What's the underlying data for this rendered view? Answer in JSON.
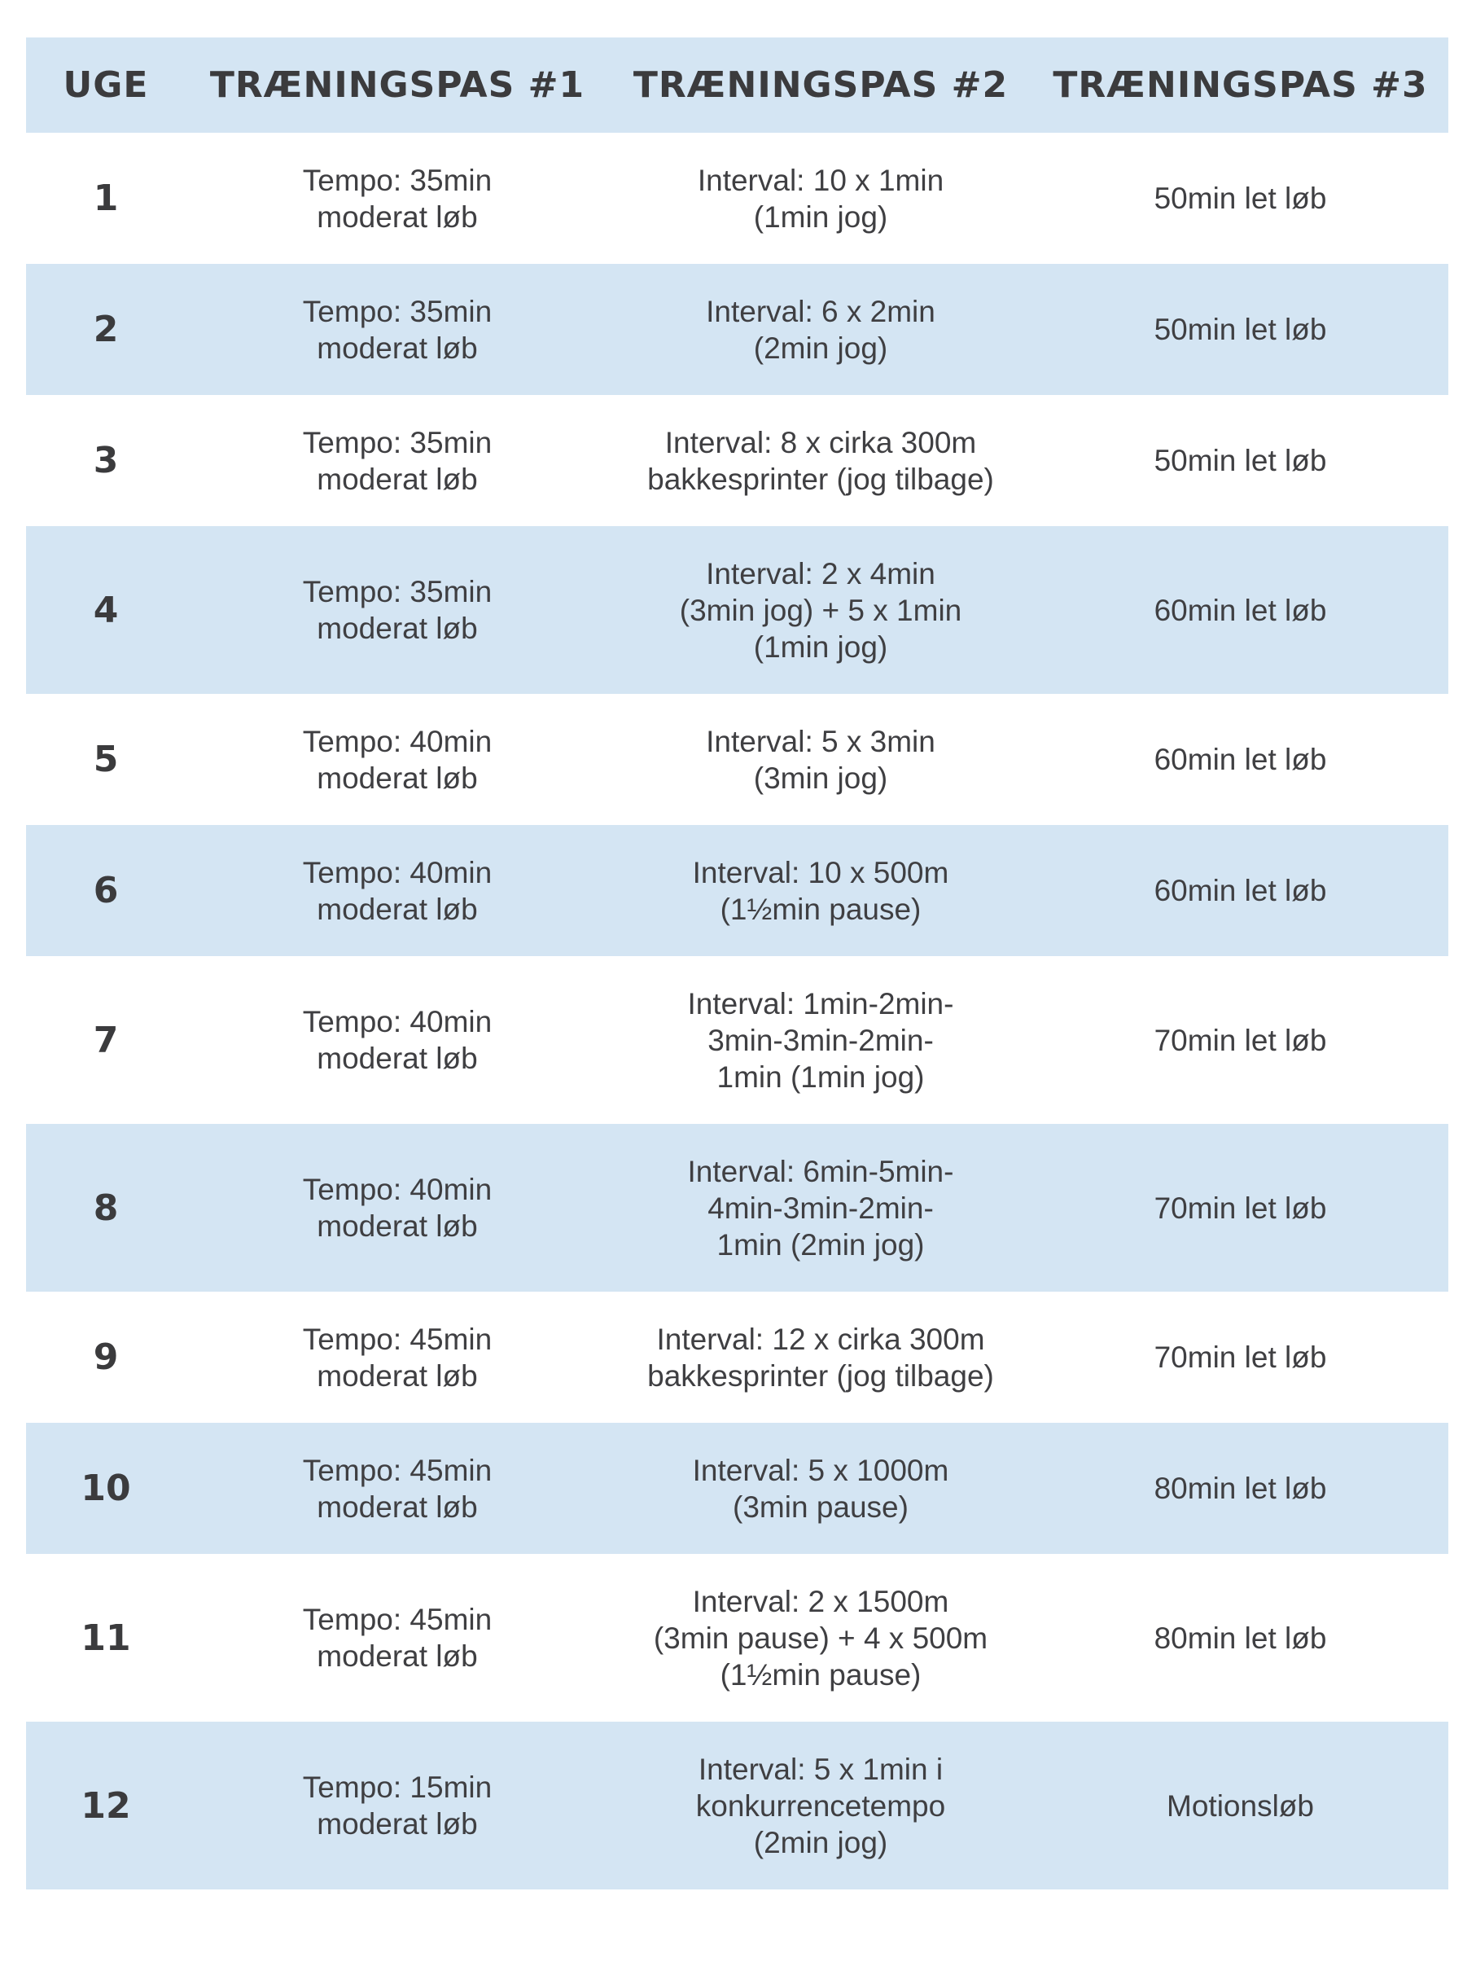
{
  "colors": {
    "stripe": "#d4e5f3",
    "text": "#3b3b3d"
  },
  "table": {
    "headers": [
      "UGE",
      "TRÆNINGSPAS #1",
      "TRÆNINGSPAS #2",
      "TRÆNINGSPAS #3"
    ],
    "rows": [
      {
        "week": "1",
        "pas1": "Tempo: 35min\nmoderat løb",
        "pas2": "Interval: 10 x 1min\n(1min jog)",
        "pas3": "50min let løb"
      },
      {
        "week": "2",
        "pas1": "Tempo: 35min\nmoderat løb",
        "pas2": "Interval: 6 x 2min\n(2min jog)",
        "pas3": "50min let løb"
      },
      {
        "week": "3",
        "pas1": "Tempo: 35min\nmoderat løb",
        "pas2": "Interval: 8 x cirka 300m\nbakkesprinter (jog tilbage)",
        "pas3": "50min let løb"
      },
      {
        "week": "4",
        "pas1": "Tempo: 35min\nmoderat løb",
        "pas2": "Interval: 2 x 4min\n(3min jog) + 5 x 1min\n(1min jog)",
        "pas3": "60min let løb"
      },
      {
        "week": "5",
        "pas1": "Tempo: 40min\nmoderat løb",
        "pas2": "Interval: 5 x 3min\n(3min jog)",
        "pas3": "60min let løb"
      },
      {
        "week": "6",
        "pas1": "Tempo: 40min\nmoderat løb",
        "pas2": "Interval: 10 x 500m\n(1½min pause)",
        "pas3": "60min let løb"
      },
      {
        "week": "7",
        "pas1": "Tempo: 40min\nmoderat løb",
        "pas2": "Interval: 1min-2min-\n3min-3min-2min-\n1min (1min jog)",
        "pas3": "70min let løb"
      },
      {
        "week": "8",
        "pas1": "Tempo: 40min\nmoderat løb",
        "pas2": "Interval: 6min-5min-\n4min-3min-2min-\n1min (2min jog)",
        "pas3": "70min let løb"
      },
      {
        "week": "9",
        "pas1": "Tempo: 45min\nmoderat løb",
        "pas2": "Interval: 12 x cirka 300m\nbakkesprinter (jog tilbage)",
        "pas3": "70min let løb"
      },
      {
        "week": "10",
        "pas1": "Tempo: 45min\nmoderat løb",
        "pas2": "Interval: 5 x 1000m\n(3min pause)",
        "pas3": "80min let løb"
      },
      {
        "week": "11",
        "pas1": "Tempo: 45min\nmoderat løb",
        "pas2": "Interval: 2 x 1500m\n(3min pause) + 4 x 500m\n(1½min pause)",
        "pas3": "80min let løb"
      },
      {
        "week": "12",
        "pas1": "Tempo: 15min\nmoderat løb",
        "pas2": "Interval: 5 x 1min i\nkonkurrencetempo\n(2min jog)",
        "pas3": "Motionsløb"
      }
    ]
  }
}
